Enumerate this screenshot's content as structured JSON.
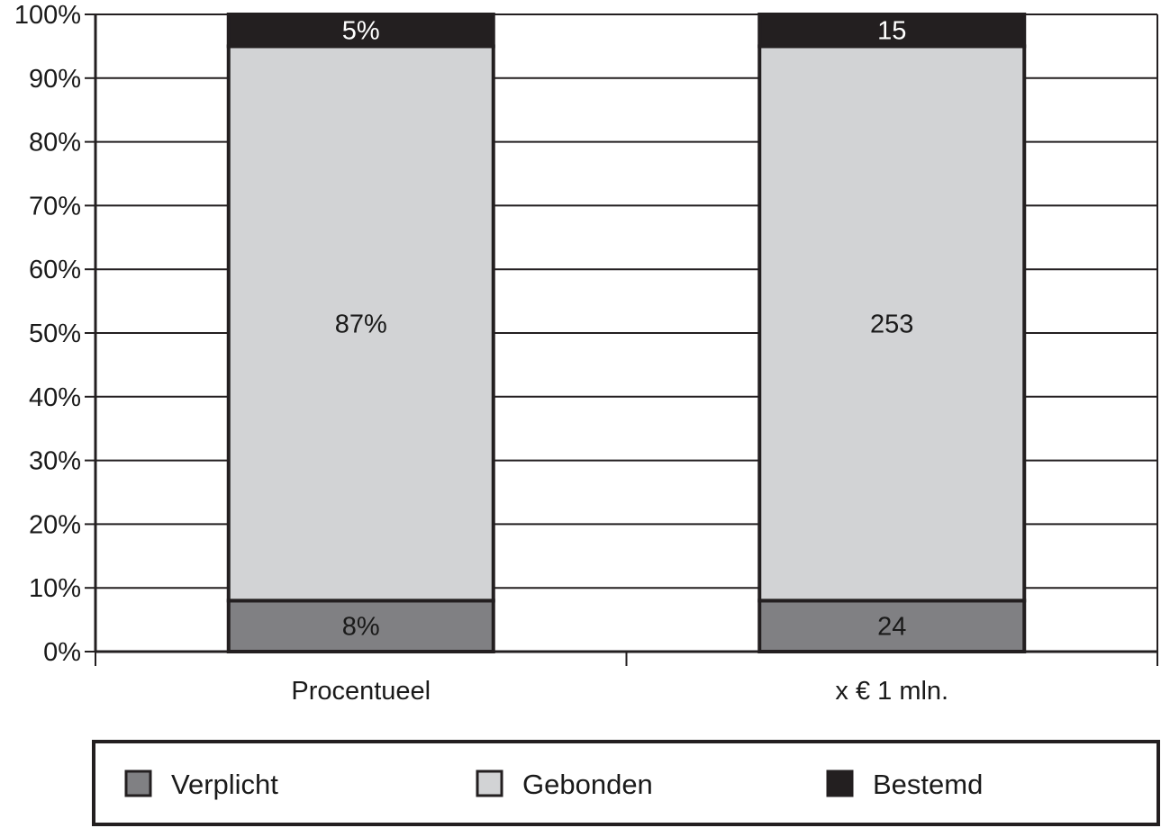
{
  "chart_data": {
    "type": "bar",
    "stacked": true,
    "categories": [
      "Procentueel",
      "x € 1 mln."
    ],
    "series": [
      {
        "name": "Verplicht",
        "shares": [
          8,
          8
        ],
        "labels": [
          "8%",
          "24"
        ]
      },
      {
        "name": "Gebonden",
        "shares": [
          87,
          87
        ],
        "labels": [
          "87%",
          "253"
        ]
      },
      {
        "name": "Bestemd",
        "shares": [
          5,
          5
        ],
        "labels": [
          "5%",
          "15"
        ]
      }
    ],
    "ylim": [
      0,
      100
    ],
    "y_ticks": [
      "0%",
      "10%",
      "20%",
      "30%",
      "40%",
      "50%",
      "60%",
      "70%",
      "80%",
      "90%",
      "100%"
    ],
    "grid": true,
    "legend_position": "bottom"
  },
  "colors": {
    "Verplicht": "#808083",
    "Gebonden": "#d2d3d5",
    "Bestemd": "#231f20",
    "axis": "#231f20",
    "grid": "#231f20"
  }
}
